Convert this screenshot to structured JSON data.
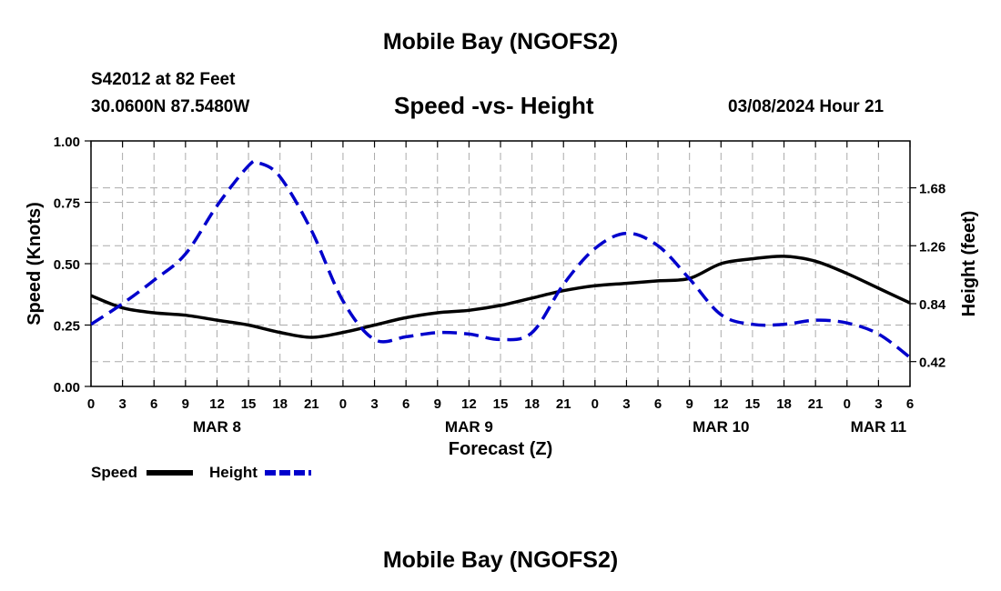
{
  "header": {
    "title_top": "Mobile Bay (NGOFS2)",
    "station": "S42012 at 82 Feet",
    "coords": "30.0600N  87.5480W",
    "subtitle": "Speed -vs- Height",
    "datetime": "03/08/2024 Hour 21",
    "title_bottom": "Mobile Bay (NGOFS2)"
  },
  "legend": {
    "speed_label": "Speed",
    "height_label": "Height"
  },
  "colors": {
    "speed": "#000000",
    "height": "#0000cc",
    "grid": "#aaaaaa"
  },
  "chart_data": {
    "type": "line",
    "xlabel": "Forecast (Z)",
    "ylabel": "Speed (Knots)",
    "y2label": "Height (feet)",
    "x_unit": "hours from MAR 8 00Z",
    "xlim": [
      0,
      78
    ],
    "ylim": [
      0,
      1.0
    ],
    "y2lim": [
      0.24,
      2.02
    ],
    "x_ticks": [
      0,
      3,
      6,
      9,
      12,
      15,
      18,
      21,
      24,
      27,
      30,
      33,
      36,
      39,
      42,
      45,
      48,
      51,
      54,
      57,
      60,
      63,
      66,
      69,
      72,
      75,
      78
    ],
    "x_tick_labels": [
      "0",
      "3",
      "6",
      "9",
      "12",
      "15",
      "18",
      "21",
      "0",
      "3",
      "6",
      "9",
      "12",
      "15",
      "18",
      "21",
      "0",
      "3",
      "6",
      "9",
      "12",
      "15",
      "18",
      "21",
      "0",
      "3",
      "6"
    ],
    "date_labels": [
      {
        "x": 12,
        "label": "MAR 8"
      },
      {
        "x": 36,
        "label": "MAR 9"
      },
      {
        "x": 60,
        "label": "MAR 10"
      },
      {
        "x": 75,
        "label": "MAR 11"
      }
    ],
    "y_ticks": [
      0.0,
      0.25,
      0.5,
      0.75,
      1.0
    ],
    "y_tick_labels": [
      "0.00",
      "0.25",
      "0.50",
      "0.75",
      "1.00"
    ],
    "y2_ticks": [
      0.42,
      0.84,
      1.26,
      1.68
    ],
    "y2_tick_labels": [
      "0.42",
      "0.84",
      "1.26",
      "1.68"
    ],
    "series": [
      {
        "name": "Speed",
        "axis": "left",
        "style": "solid",
        "x": [
          0,
          3,
          6,
          9,
          12,
          15,
          18,
          21,
          24,
          27,
          30,
          33,
          36,
          39,
          42,
          45,
          48,
          51,
          54,
          57,
          60,
          63,
          66,
          69,
          72,
          75,
          78
        ],
        "values": [
          0.37,
          0.32,
          0.3,
          0.29,
          0.27,
          0.25,
          0.22,
          0.2,
          0.22,
          0.25,
          0.28,
          0.3,
          0.31,
          0.33,
          0.36,
          0.39,
          0.41,
          0.42,
          0.43,
          0.44,
          0.5,
          0.52,
          0.53,
          0.51,
          0.46,
          0.4,
          0.34
        ]
      },
      {
        "name": "Height",
        "axis": "right",
        "style": "dashed",
        "x": [
          0,
          3,
          6,
          9,
          12,
          15,
          16,
          18,
          21,
          24,
          27,
          30,
          33,
          36,
          39,
          42,
          45,
          48,
          51,
          54,
          57,
          60,
          63,
          66,
          69,
          72,
          75,
          78
        ],
        "values": [
          0.69,
          0.84,
          1.01,
          1.2,
          1.55,
          1.84,
          1.86,
          1.76,
          1.37,
          0.86,
          0.58,
          0.6,
          0.63,
          0.62,
          0.58,
          0.63,
          0.98,
          1.24,
          1.35,
          1.26,
          1.02,
          0.76,
          0.69,
          0.69,
          0.72,
          0.7,
          0.62,
          0.45
        ]
      }
    ]
  }
}
